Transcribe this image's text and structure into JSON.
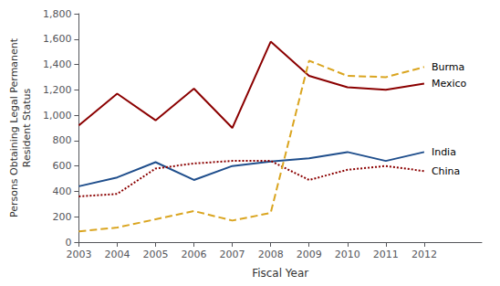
{
  "chart_data": {
    "type": "line",
    "xlabel": "Fiscal Year",
    "ylabel": "Persons Obtaining Legal Permanent\nResident Status",
    "x": [
      2003,
      2004,
      2005,
      2006,
      2007,
      2008,
      2009,
      2010,
      2011,
      2012
    ],
    "series": [
      {
        "name": "Mexico",
        "color": "#8B0000",
        "line_style": "solid",
        "values": [
          920,
          1170,
          960,
          1210,
          900,
          1580,
          1310,
          1220,
          1200,
          1250
        ]
      },
      {
        "name": "India",
        "color": "#1F4E8C",
        "line_style": "solid",
        "values": [
          440,
          510,
          630,
          490,
          600,
          635,
          660,
          710,
          640,
          710
        ]
      },
      {
        "name": "China",
        "color": "#8B0000",
        "line_style": "dotted",
        "values": [
          360,
          380,
          580,
          620,
          640,
          640,
          490,
          570,
          600,
          560
        ]
      },
      {
        "name": "Burma",
        "color": "#DAA520",
        "line_style": "dashed",
        "values": [
          85,
          115,
          180,
          245,
          170,
          230,
          1430,
          1310,
          1300,
          1380
        ]
      }
    ],
    "xlim": [
      2003,
      2013.5
    ],
    "xticks": [
      2003,
      2004,
      2005,
      2006,
      2007,
      2008,
      2009,
      2010,
      2011,
      2012
    ],
    "ylim": [
      0,
      1800
    ],
    "yticks": [
      0,
      200,
      400,
      600,
      800,
      {
        "value": 1000,
        "label": "1,000"
      },
      {
        "value": 1200,
        "label": "1,200"
      },
      {
        "value": 1400,
        "label": "1,400"
      },
      {
        "value": 1600,
        "label": "1,600"
      },
      {
        "value": 1800,
        "label": "1,800"
      }
    ],
    "grid": false
  }
}
